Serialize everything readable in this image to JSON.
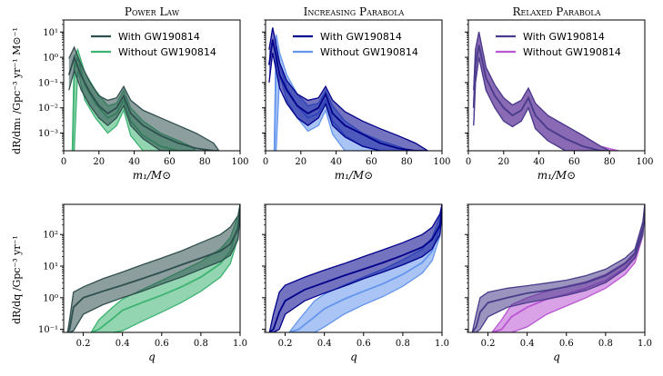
{
  "figure": {
    "mass_ylabel": "dR/dm₁ /Gpc⁻³ yr⁻¹ M⊙⁻¹",
    "q_ylabel": "dR/dq /Gpc⁻³ yr⁻¹",
    "mass_xlabel": "m₁/M⊙",
    "q_xlabel": "q"
  },
  "chart_data": [
    {
      "type": "area",
      "panel": "mass",
      "title": "Power Law",
      "xlabel": "m₁/M⊙",
      "xlim": [
        0,
        100
      ],
      "ylim": [
        0.0002,
        30
      ],
      "yscale": "log",
      "xticks": [
        "0",
        "20",
        "40",
        "60",
        "80",
        "100"
      ],
      "yticks": [
        "10⁻³",
        "10⁻²",
        "10⁻¹",
        "10⁰",
        "10¹"
      ],
      "legend_position": "top-right",
      "colors": {
        "with": "#2f4f4f",
        "without": "#3cb371"
      },
      "series": [
        {
          "name": "With GW190814",
          "x": [
            3,
            6,
            10,
            15,
            20,
            25,
            30,
            34,
            38,
            45,
            55,
            65,
            75,
            85,
            88
          ],
          "median": [
            0.2,
            1.0,
            0.18,
            0.04,
            0.012,
            0.006,
            0.01,
            0.03,
            0.006,
            0.002,
            0.0008,
            0.0004,
            0.00025,
            0.0002,
            0.0002
          ],
          "lower": [
            0.05,
            0.3,
            0.05,
            0.012,
            0.004,
            0.002,
            0.004,
            0.012,
            0.002,
            0.0006,
            0.0002,
            0.0002,
            0.0002,
            0.0002,
            0.0002
          ],
          "upper": [
            0.9,
            2.5,
            0.5,
            0.1,
            0.03,
            0.02,
            0.025,
            0.07,
            0.02,
            0.008,
            0.004,
            0.002,
            0.001,
            0.0004,
            0.0002
          ]
        },
        {
          "name": "Without GW190814",
          "x": [
            5,
            6,
            8,
            12,
            18,
            25,
            30,
            34,
            38,
            45,
            55,
            65,
            72,
            75
          ],
          "median": [
            0.0002,
            0.3,
            1.0,
            0.08,
            0.015,
            0.004,
            0.006,
            0.02,
            0.003,
            0.0008,
            0.0003,
            0.0002,
            0.0002,
            0.0002
          ],
          "lower": [
            0.0002,
            0.0002,
            0.3,
            0.02,
            0.004,
            0.001,
            0.002,
            0.008,
            0.0008,
            0.0002,
            0.0002,
            0.0002,
            0.0002,
            0.0002
          ],
          "upper": [
            0.0002,
            1.0,
            2.0,
            0.25,
            0.05,
            0.012,
            0.015,
            0.05,
            0.01,
            0.003,
            0.001,
            0.0005,
            0.0003,
            0.0002
          ]
        }
      ]
    },
    {
      "type": "area",
      "panel": "mass",
      "title": "Increasing Parabola",
      "xlabel": "m₁/M⊙",
      "xlim": [
        0,
        100
      ],
      "ylim": [
        0.0002,
        30
      ],
      "yscale": "log",
      "xticks": [
        "0",
        "20",
        "40",
        "60",
        "80",
        "100"
      ],
      "legend_position": "top-right",
      "colors": {
        "with": "#00008b",
        "without": "#6495ed"
      },
      "series": [
        {
          "name": "With GW190814",
          "x": [
            2,
            4,
            8,
            12,
            18,
            24,
            30,
            34,
            38,
            45,
            55,
            65,
            75,
            85,
            92
          ],
          "median": [
            0.5,
            5.0,
            0.2,
            0.05,
            0.012,
            0.006,
            0.01,
            0.035,
            0.006,
            0.002,
            0.0009,
            0.0004,
            0.00025,
            0.0002,
            0.0002
          ],
          "lower": [
            0.1,
            1.5,
            0.06,
            0.015,
            0.004,
            0.002,
            0.004,
            0.014,
            0.002,
            0.0007,
            0.0003,
            0.0002,
            0.0002,
            0.0002,
            0.0002
          ],
          "upper": [
            2.0,
            15.0,
            0.6,
            0.12,
            0.035,
            0.02,
            0.025,
            0.07,
            0.02,
            0.007,
            0.003,
            0.0015,
            0.0008,
            0.0004,
            0.0002
          ]
        },
        {
          "name": "Without GW190814",
          "x": [
            5,
            6,
            8,
            12,
            18,
            24,
            30,
            34,
            38,
            45,
            55,
            65,
            75,
            82,
            85
          ],
          "median": [
            0.0002,
            1.5,
            0.6,
            0.06,
            0.012,
            0.004,
            0.006,
            0.02,
            0.003,
            0.0008,
            0.0003,
            0.0002,
            0.0002,
            0.0002,
            0.0002
          ],
          "lower": [
            0.0002,
            0.0002,
            0.2,
            0.02,
            0.004,
            0.0012,
            0.002,
            0.008,
            0.0009,
            0.0002,
            0.0002,
            0.0002,
            0.0002,
            0.0002,
            0.0002
          ],
          "upper": [
            0.0002,
            8.0,
            1.5,
            0.2,
            0.035,
            0.012,
            0.015,
            0.05,
            0.012,
            0.003,
            0.001,
            0.0005,
            0.0003,
            0.0002,
            0.0002
          ]
        }
      ]
    },
    {
      "type": "area",
      "panel": "mass",
      "title": "Relaxed Parabola",
      "xlabel": "m₁/M⊙",
      "xlim": [
        0,
        100
      ],
      "ylim": [
        0.0002,
        30
      ],
      "yscale": "log",
      "xticks": [
        "0",
        "20",
        "40",
        "60",
        "80",
        "100"
      ],
      "legend_position": "top-right",
      "colors": {
        "with": "#483d8b",
        "without": "#ba55d3"
      },
      "series": [
        {
          "name": "With GW190814",
          "x": [
            3,
            4,
            6,
            10,
            15,
            20,
            25,
            30,
            34,
            38,
            45,
            55,
            65,
            75,
            80
          ],
          "median": [
            0.01,
            0.5,
            3.0,
            0.15,
            0.03,
            0.01,
            0.005,
            0.008,
            0.025,
            0.005,
            0.0015,
            0.0006,
            0.0003,
            0.0002,
            0.0002
          ],
          "lower": [
            0.002,
            0.1,
            1.0,
            0.05,
            0.01,
            0.003,
            0.0018,
            0.003,
            0.01,
            0.0015,
            0.0005,
            0.0002,
            0.0002,
            0.0002,
            0.0002
          ],
          "upper": [
            0.05,
            2.0,
            10.0,
            0.4,
            0.08,
            0.025,
            0.013,
            0.02,
            0.06,
            0.015,
            0.005,
            0.002,
            0.0008,
            0.0003,
            0.0002
          ]
        },
        {
          "name": "Without GW190814",
          "x": [
            3,
            4,
            6,
            10,
            15,
            20,
            25,
            30,
            34,
            38,
            45,
            55,
            65,
            75,
            85
          ],
          "median": [
            0.01,
            0.5,
            3.0,
            0.15,
            0.03,
            0.01,
            0.005,
            0.008,
            0.025,
            0.005,
            0.0015,
            0.0006,
            0.0003,
            0.0002,
            0.0002
          ],
          "lower": [
            0.002,
            0.1,
            1.0,
            0.05,
            0.01,
            0.003,
            0.0018,
            0.003,
            0.01,
            0.0015,
            0.0005,
            0.0002,
            0.0002,
            0.0002,
            0.0002
          ],
          "upper": [
            0.05,
            2.0,
            10.0,
            0.4,
            0.08,
            0.025,
            0.013,
            0.02,
            0.06,
            0.015,
            0.005,
            0.002,
            0.0008,
            0.0003,
            0.0002
          ]
        }
      ]
    },
    {
      "type": "area",
      "panel": "q",
      "title": "",
      "xlabel": "q",
      "xlim": [
        0.1,
        1.0
      ],
      "ylim": [
        0.08,
        900
      ],
      "yscale": "log",
      "xticks": [
        "0.2",
        "0.4",
        "0.6",
        "0.8",
        "1.0"
      ],
      "yticks": [
        "10⁻¹",
        "10⁰",
        "10¹",
        "10²"
      ],
      "colors": {
        "with": "#2f4f4f",
        "without": "#3cb371"
      },
      "series": [
        {
          "name": "With GW190814",
          "x": [
            0.12,
            0.13,
            0.15,
            0.2,
            0.3,
            0.4,
            0.5,
            0.6,
            0.7,
            0.8,
            0.9,
            0.95,
            0.99,
            1.0
          ],
          "median": [
            0.08,
            0.1,
            0.5,
            1.0,
            1.6,
            2.5,
            4.0,
            6.5,
            11,
            18,
            30,
            50,
            150,
            700
          ],
          "lower": [
            0.08,
            0.08,
            0.09,
            0.3,
            0.6,
            1.0,
            1.6,
            2.7,
            4.5,
            8,
            14,
            22,
            70,
            600
          ],
          "upper": [
            0.08,
            0.2,
            1.5,
            2.2,
            4.0,
            6.5,
            11,
            18,
            30,
            55,
            100,
            170,
            400,
            900
          ]
        },
        {
          "name": "Without GW190814",
          "x": [
            0.24,
            0.28,
            0.35,
            0.4,
            0.5,
            0.6,
            0.7,
            0.8,
            0.9,
            0.95,
            0.99,
            1.0
          ],
          "median": [
            0.08,
            0.1,
            0.22,
            0.4,
            0.7,
            1.2,
            2.2,
            4.5,
            12,
            30,
            200,
            700
          ],
          "lower": [
            0.08,
            0.08,
            0.08,
            0.09,
            0.18,
            0.35,
            0.7,
            1.6,
            4.5,
            12,
            80,
            600
          ],
          "upper": [
            0.08,
            0.2,
            0.5,
            0.9,
            1.8,
            3.5,
            7.0,
            14,
            35,
            80,
            400,
            900
          ]
        }
      ]
    },
    {
      "type": "area",
      "panel": "q",
      "title": "",
      "xlabel": "q",
      "xlim": [
        0.1,
        1.0
      ],
      "ylim": [
        0.08,
        900
      ],
      "yscale": "log",
      "xticks": [
        "0.2",
        "0.4",
        "0.6",
        "0.8",
        "1.0"
      ],
      "colors": {
        "with": "#00008b",
        "without": "#6495ed"
      },
      "series": [
        {
          "name": "With GW190814",
          "x": [
            0.12,
            0.14,
            0.17,
            0.2,
            0.3,
            0.4,
            0.5,
            0.6,
            0.7,
            0.8,
            0.9,
            0.95,
            0.99,
            1.0
          ],
          "median": [
            0.08,
            0.1,
            0.35,
            0.8,
            1.8,
            3.0,
            5.0,
            8.0,
            13,
            22,
            40,
            70,
            200,
            700
          ],
          "lower": [
            0.08,
            0.08,
            0.1,
            0.3,
            0.8,
            1.4,
            2.3,
            4.0,
            6.5,
            11,
            20,
            35,
            100,
            600
          ],
          "upper": [
            0.08,
            0.3,
            1.5,
            2.5,
            4.5,
            7.5,
            12,
            20,
            33,
            55,
            100,
            170,
            450,
            900
          ]
        },
        {
          "name": "Without GW190814",
          "x": [
            0.22,
            0.27,
            0.35,
            0.4,
            0.5,
            0.6,
            0.7,
            0.8,
            0.9,
            0.95,
            0.99,
            1.0
          ],
          "median": [
            0.08,
            0.1,
            0.25,
            0.45,
            0.9,
            1.6,
            2.8,
            5.5,
            13,
            30,
            200,
            700
          ],
          "lower": [
            0.08,
            0.08,
            0.08,
            0.12,
            0.3,
            0.6,
            1.1,
            2.3,
            6.0,
            15,
            90,
            600
          ],
          "upper": [
            0.08,
            0.2,
            0.8,
            1.3,
            2.5,
            4.5,
            8.0,
            16,
            35,
            80,
            400,
            900
          ]
        }
      ]
    },
    {
      "type": "area",
      "panel": "q",
      "title": "",
      "xlabel": "q",
      "xlim": [
        0.1,
        1.0
      ],
      "ylim": [
        0.08,
        900
      ],
      "yscale": "log",
      "xticks": [
        "0.2",
        "0.4",
        "0.6",
        "0.8",
        "1.0"
      ],
      "colors": {
        "with": "#483d8b",
        "without": "#ba55d3"
      },
      "series": [
        {
          "name": "With GW190814",
          "x": [
            0.12,
            0.14,
            0.16,
            0.2,
            0.3,
            0.4,
            0.5,
            0.6,
            0.7,
            0.8,
            0.9,
            0.95,
            0.99,
            1.0
          ],
          "median": [
            0.08,
            0.12,
            0.35,
            0.7,
            1.0,
            1.4,
            1.7,
            2.2,
            3.0,
            5.0,
            12,
            25,
            150,
            700
          ],
          "lower": [
            0.08,
            0.08,
            0.1,
            0.25,
            0.5,
            0.7,
            0.9,
            1.2,
            1.7,
            3.0,
            8.0,
            18,
            100,
            600
          ],
          "upper": [
            0.08,
            0.3,
            1.0,
            1.5,
            2.0,
            2.4,
            2.9,
            3.6,
            5.0,
            8.0,
            18,
            35,
            250,
            900
          ]
        },
        {
          "name": "Without GW190814",
          "x": [
            0.22,
            0.27,
            0.32,
            0.4,
            0.5,
            0.6,
            0.7,
            0.8,
            0.9,
            0.95,
            0.99,
            1.0
          ],
          "median": [
            0.08,
            0.1,
            0.25,
            0.5,
            0.9,
            1.3,
            2.0,
            3.5,
            9.0,
            20,
            150,
            700
          ],
          "lower": [
            0.08,
            0.08,
            0.08,
            0.12,
            0.3,
            0.55,
            1.0,
            2.0,
            5.5,
            13,
            90,
            600
          ],
          "upper": [
            0.08,
            0.2,
            0.6,
            1.0,
            1.6,
            2.3,
            3.2,
            5.5,
            13,
            28,
            220,
            900
          ]
        }
      ]
    }
  ]
}
